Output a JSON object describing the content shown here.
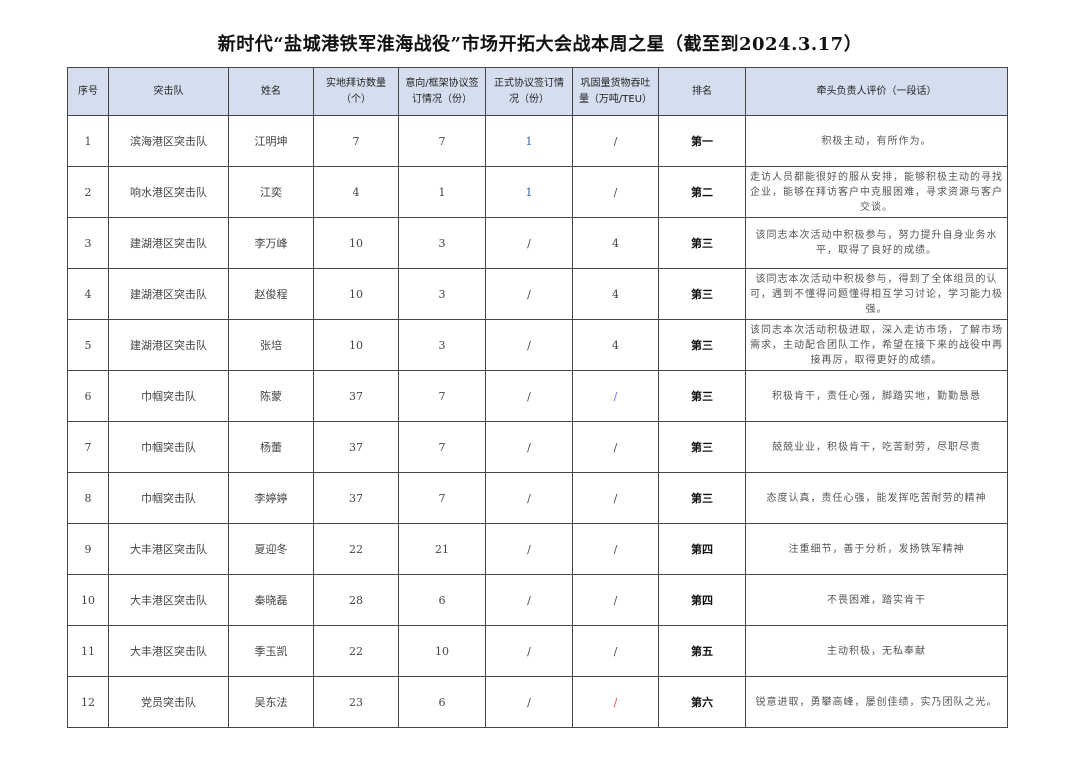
{
  "title": "新时代“盐城港铁军淮海战役”市场开拓大会战本周之星（截至到2024.3.17）",
  "columns": [
    "序号",
    "突击队",
    "姓名",
    "实地拜访数量（个）",
    "意向/框架协议签订情况（份）",
    "正式协议签订情况（份）",
    "巩固量货物吞吐量（万吨/TEU）",
    "排名",
    "牵头负责人评价（一段话）"
  ],
  "rows": [
    [
      "1",
      "滨海港区突击队",
      "江明坤",
      "7",
      "7",
      "1",
      "/",
      "第一",
      "积极主动，有所作为。"
    ],
    [
      "2",
      "响水港区突击队",
      "江奕",
      "4",
      "1",
      "1",
      "/",
      "第二",
      "走访人员都能很好的服从安排，能够积极主动的寻找企业，能够在拜访客户中克服困难，寻求资源与客户交谈。"
    ],
    [
      "3",
      "建湖港区突击队",
      "李万峰",
      "10",
      "3",
      "/",
      "4",
      "第三",
      "该同志本次活动中积极参与，努力提升自身业务水平，取得了良好的成绩。"
    ],
    [
      "4",
      "建湖港区突击队",
      "赵俊程",
      "10",
      "3",
      "/",
      "4",
      "第三",
      "该同志本次活动中积极参与，得到了全体组员的认可，遇到不懂得问题懂得相互学习讨论，学习能力极强。"
    ],
    [
      "5",
      "建湖港区突击队",
      "张培",
      "10",
      "3",
      "/",
      "4",
      "第三",
      "该同志本次活动积极进取，深入走访市场，了解市场需求，主动配合团队工作，希望在接下来的战役中再接再厉，取得更好的成绩。"
    ],
    [
      "6",
      "巾帼突击队",
      "陈蒙",
      "37",
      "7",
      "/",
      "/",
      "第三",
      "积极肯干，责任心强，脚踏实地，勤勤恳恳"
    ],
    [
      "7",
      "巾帼突击队",
      "杨蕾",
      "37",
      "7",
      "/",
      "/",
      "第三",
      "兢兢业业，积极肯干，吃苦耐劳，尽职尽责"
    ],
    [
      "8",
      "巾帼突击队",
      "李婷婷",
      "37",
      "7",
      "/",
      "/",
      "第三",
      "态度认真，责任心强，能发挥吃苦耐劳的精神"
    ],
    [
      "9",
      "大丰港区突击队",
      "夏迎冬",
      "22",
      "21",
      "/",
      "/",
      "第四",
      "注重细节，善于分析，发扬铁军精神"
    ],
    [
      "10",
      "大丰港区突击队",
      "秦晓磊",
      "28",
      "6",
      "/",
      "/",
      "第四",
      "不畏困难，踏实肯干"
    ],
    [
      "11",
      "大丰港区突击队",
      "季玉凯",
      "22",
      "10",
      "/",
      "/",
      "第五",
      "主动积极，无私奉献"
    ],
    [
      "12",
      "党员突击队",
      "吴东法",
      "23",
      "6",
      "/",
      "/",
      "第六",
      "锐意进取，勇攀高峰，屡创佳绩，实乃团队之光。"
    ]
  ],
  "cell_colors": {
    "0.5": "#2f5fa8",
    "1.5": "#2f5fa8",
    "5.6": "#6a6aff",
    "11.6": "#e0444c"
  },
  "colors": {
    "header_bg": "#d5deef",
    "border": "#444444"
  }
}
